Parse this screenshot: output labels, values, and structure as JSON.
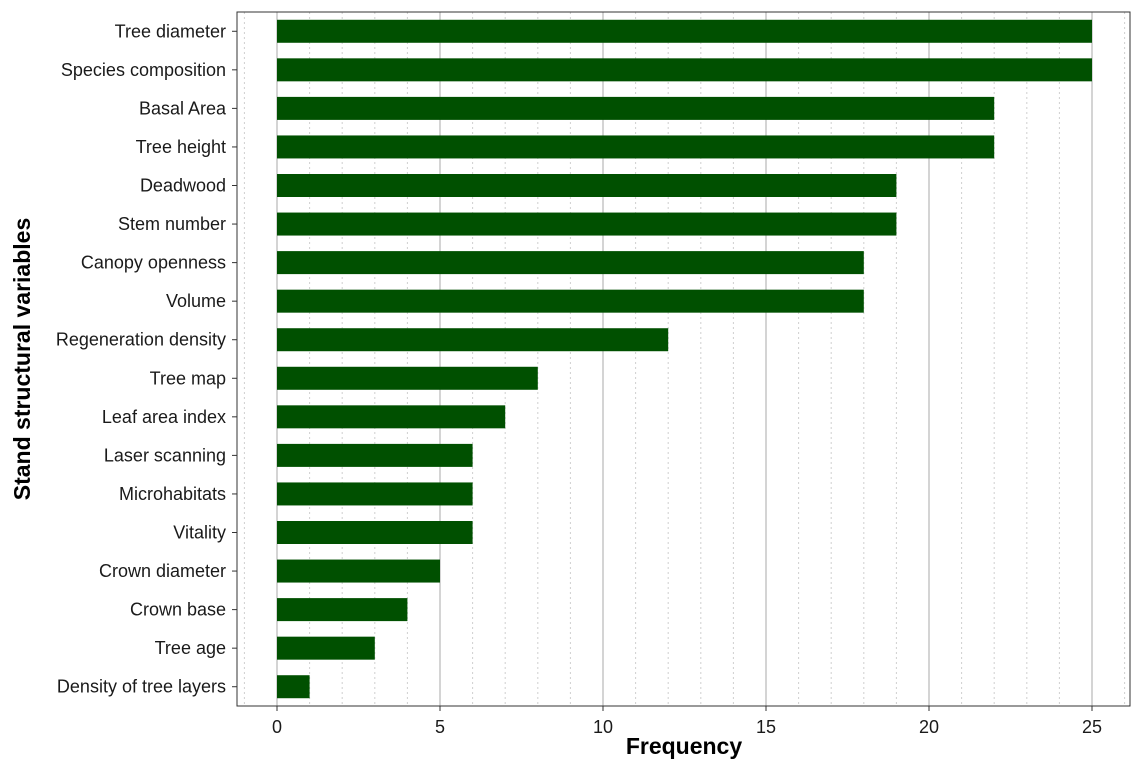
{
  "chart_data": {
    "type": "bar",
    "orientation": "horizontal",
    "title": "",
    "xlabel": "Frequency",
    "ylabel": "Stand structural variables",
    "xlim": [
      0,
      25
    ],
    "x_ticks": [
      0,
      5,
      10,
      15,
      20,
      25
    ],
    "grid": true,
    "legend": "none",
    "categories": [
      "Tree diameter",
      "Species composition",
      "Basal Area",
      "Tree height",
      "Deadwood",
      "Stem number",
      "Canopy openness",
      "Volume",
      "Regeneration density",
      "Tree map",
      "Leaf area index",
      "Laser scanning",
      "Microhabitats",
      "Vitality",
      "Crown diameter",
      "Crown base",
      "Tree age",
      "Density of tree layers"
    ],
    "values": [
      25,
      25,
      22,
      22,
      19,
      19,
      18,
      18,
      12,
      8,
      7,
      6,
      6,
      6,
      5,
      4,
      3,
      1
    ],
    "bar_color": "#005000"
  }
}
